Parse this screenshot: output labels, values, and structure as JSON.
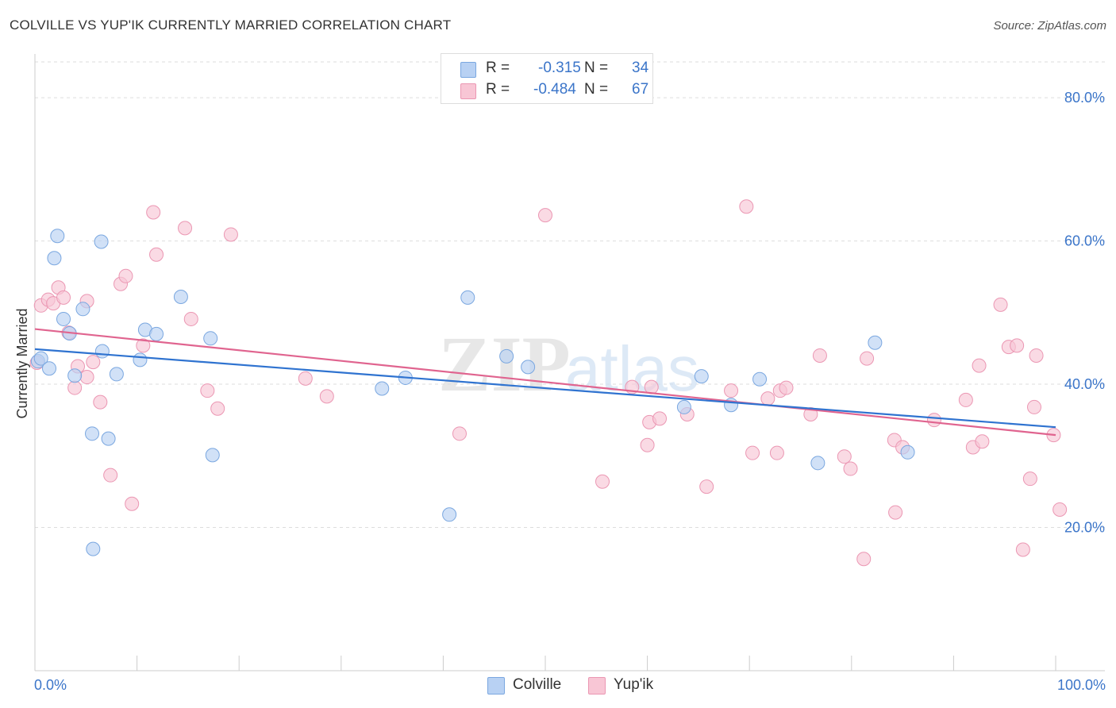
{
  "header": {
    "title": "COLVILLE VS YUP'IK CURRENTLY MARRIED CORRELATION CHART",
    "source": "Source: ZipAtlas.com"
  },
  "legend": {
    "colville": {
      "r_label": "R =",
      "r_value": "-0.315",
      "n_label": "N =",
      "n_value": "34"
    },
    "yupik": {
      "r_label": "R =",
      "r_value": "-0.484",
      "n_label": "N =",
      "n_value": "67"
    }
  },
  "colors": {
    "colville_fill": "#b8d1f3",
    "colville_stroke": "#7aa7e0",
    "colville_line": "#2f73d0",
    "yupik_fill": "#f8c6d5",
    "yupik_stroke": "#eb97b3",
    "yupik_line": "#e0648f",
    "axis_text": "#3b75c9",
    "grid": "#dddddd"
  },
  "watermark": {
    "part1": "ZIP",
    "part2": "atlas"
  },
  "chart_data": {
    "type": "scatter",
    "title": "COLVILLE VS YUP'IK CURRENTLY MARRIED CORRELATION CHART",
    "xlabel": "",
    "ylabel": "Currently Married",
    "xlim": [
      0,
      100
    ],
    "ylim": [
      0,
      85
    ],
    "x_tick_labels": [
      "0.0%",
      "100.0%"
    ],
    "y_ticks": [
      20,
      40,
      60,
      80
    ],
    "y_tick_labels": [
      "20.0%",
      "40.0%",
      "60.0%",
      "80.0%"
    ],
    "grid": true,
    "legend_position": "top-center",
    "series": [
      {
        "name": "Colville",
        "trend": {
          "x": [
            0,
            100
          ],
          "y": [
            44.9,
            34.0
          ]
        },
        "points": [
          {
            "x": 0.3,
            "y": 43.2
          },
          {
            "x": 0.6,
            "y": 43.6
          },
          {
            "x": 1.4,
            "y": 42.2
          },
          {
            "x": 2.2,
            "y": 60.7
          },
          {
            "x": 1.9,
            "y": 57.6
          },
          {
            "x": 2.8,
            "y": 49.1
          },
          {
            "x": 3.4,
            "y": 47.1
          },
          {
            "x": 3.9,
            "y": 41.2
          },
          {
            "x": 4.7,
            "y": 50.5
          },
          {
            "x": 5.6,
            "y": 33.1
          },
          {
            "x": 5.7,
            "y": 17.0
          },
          {
            "x": 6.5,
            "y": 59.9
          },
          {
            "x": 6.6,
            "y": 44.6
          },
          {
            "x": 7.2,
            "y": 32.4
          },
          {
            "x": 8.0,
            "y": 41.4
          },
          {
            "x": 10.3,
            "y": 43.4
          },
          {
            "x": 10.8,
            "y": 47.6
          },
          {
            "x": 11.9,
            "y": 47.0
          },
          {
            "x": 14.3,
            "y": 52.2
          },
          {
            "x": 17.2,
            "y": 46.4
          },
          {
            "x": 17.4,
            "y": 30.1
          },
          {
            "x": 34.0,
            "y": 39.4
          },
          {
            "x": 36.3,
            "y": 40.9
          },
          {
            "x": 40.6,
            "y": 21.8
          },
          {
            "x": 42.4,
            "y": 52.1
          },
          {
            "x": 46.2,
            "y": 43.9
          },
          {
            "x": 48.3,
            "y": 42.4
          },
          {
            "x": 63.6,
            "y": 36.8
          },
          {
            "x": 65.3,
            "y": 41.1
          },
          {
            "x": 68.2,
            "y": 37.1
          },
          {
            "x": 71.0,
            "y": 40.7
          },
          {
            "x": 76.7,
            "y": 29.0
          },
          {
            "x": 82.3,
            "y": 45.8
          },
          {
            "x": 85.5,
            "y": 30.5
          }
        ]
      },
      {
        "name": "Yup'ik",
        "trend": {
          "x": [
            0,
            100
          ],
          "y": [
            47.7,
            32.9
          ]
        },
        "points": [
          {
            "x": 0.6,
            "y": 51.0
          },
          {
            "x": 1.3,
            "y": 51.8
          },
          {
            "x": 1.8,
            "y": 51.3
          },
          {
            "x": 2.3,
            "y": 53.5
          },
          {
            "x": 2.8,
            "y": 52.1
          },
          {
            "x": 3.3,
            "y": 47.2
          },
          {
            "x": 3.9,
            "y": 39.5
          },
          {
            "x": 4.2,
            "y": 42.5
          },
          {
            "x": 5.1,
            "y": 41.0
          },
          {
            "x": 5.1,
            "y": 51.6
          },
          {
            "x": 5.7,
            "y": 43.1
          },
          {
            "x": 6.4,
            "y": 37.5
          },
          {
            "x": 7.4,
            "y": 27.3
          },
          {
            "x": 8.4,
            "y": 54.0
          },
          {
            "x": 8.9,
            "y": 55.1
          },
          {
            "x": 9.5,
            "y": 23.3
          },
          {
            "x": 10.6,
            "y": 45.4
          },
          {
            "x": 11.6,
            "y": 64.0
          },
          {
            "x": 11.9,
            "y": 58.1
          },
          {
            "x": 14.7,
            "y": 61.8
          },
          {
            "x": 15.3,
            "y": 49.1
          },
          {
            "x": 16.9,
            "y": 39.1
          },
          {
            "x": 17.9,
            "y": 36.6
          },
          {
            "x": 19.2,
            "y": 60.9
          },
          {
            "x": 26.5,
            "y": 40.8
          },
          {
            "x": 28.6,
            "y": 38.3
          },
          {
            "x": 41.6,
            "y": 33.1
          },
          {
            "x": 50.0,
            "y": 63.6
          },
          {
            "x": 55.6,
            "y": 26.4
          },
          {
            "x": 58.5,
            "y": 39.6
          },
          {
            "x": 60.0,
            "y": 31.5
          },
          {
            "x": 60.2,
            "y": 34.7
          },
          {
            "x": 60.4,
            "y": 39.6
          },
          {
            "x": 61.2,
            "y": 35.2
          },
          {
            "x": 63.9,
            "y": 35.8
          },
          {
            "x": 65.8,
            "y": 25.7
          },
          {
            "x": 68.2,
            "y": 39.1
          },
          {
            "x": 69.7,
            "y": 64.8
          },
          {
            "x": 70.3,
            "y": 30.4
          },
          {
            "x": 71.8,
            "y": 38.0
          },
          {
            "x": 73.0,
            "y": 39.1
          },
          {
            "x": 73.6,
            "y": 39.5
          },
          {
            "x": 72.7,
            "y": 30.4
          },
          {
            "x": 76.9,
            "y": 44.0
          },
          {
            "x": 76.0,
            "y": 35.8
          },
          {
            "x": 79.3,
            "y": 29.9
          },
          {
            "x": 79.9,
            "y": 28.2
          },
          {
            "x": 81.2,
            "y": 15.6
          },
          {
            "x": 81.5,
            "y": 43.6
          },
          {
            "x": 84.3,
            "y": 22.1
          },
          {
            "x": 84.2,
            "y": 32.2
          },
          {
            "x": 85.0,
            "y": 31.2
          },
          {
            "x": 88.1,
            "y": 35.0
          },
          {
            "x": 91.2,
            "y": 37.8
          },
          {
            "x": 91.9,
            "y": 31.2
          },
          {
            "x": 92.5,
            "y": 42.6
          },
          {
            "x": 92.8,
            "y": 32.0
          },
          {
            "x": 94.6,
            "y": 51.1
          },
          {
            "x": 95.4,
            "y": 45.2
          },
          {
            "x": 96.2,
            "y": 45.4
          },
          {
            "x": 96.8,
            "y": 16.9
          },
          {
            "x": 97.5,
            "y": 26.8
          },
          {
            "x": 97.9,
            "y": 36.8
          },
          {
            "x": 98.1,
            "y": 44.0
          },
          {
            "x": 99.8,
            "y": 32.9
          },
          {
            "x": 100.4,
            "y": 22.5
          },
          {
            "x": 0.2,
            "y": 43.0
          }
        ]
      }
    ]
  }
}
